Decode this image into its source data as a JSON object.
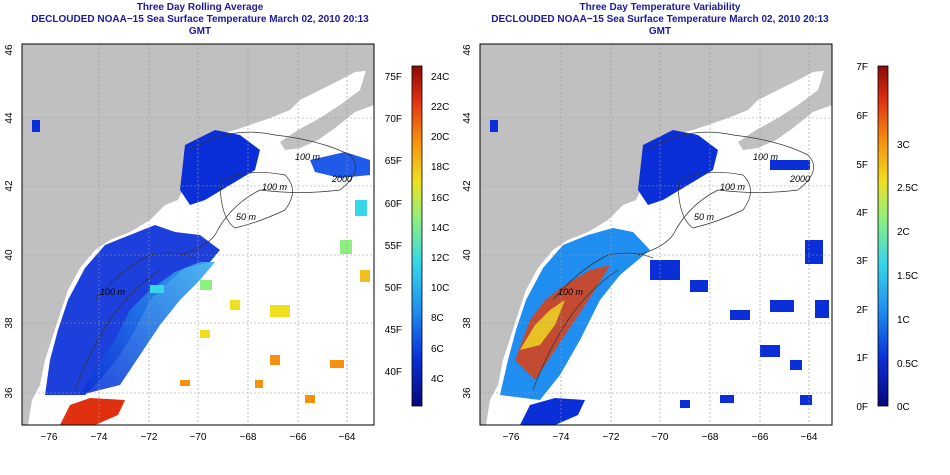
{
  "left_panel": {
    "title_line1": "Three Day Rolling Average",
    "title_line2": "DECLOUDED NOAA−15 Sea Surface Temperature March 02, 2010 20:13 GMT",
    "x_ticks": [
      "−76",
      "−74",
      "−72",
      "−70",
      "−68",
      "−66",
      "−64"
    ],
    "y_ticks": [
      "36",
      "38",
      "40",
      "42",
      "44",
      "46"
    ],
    "contour_labels": [
      "100 m",
      "2000",
      "100 m",
      "50 m",
      "100 m"
    ],
    "colorbar_f": [
      "75F",
      "70F",
      "65F",
      "60F",
      "55F",
      "50F",
      "45F",
      "40F"
    ],
    "colorbar_c": [
      "24C",
      "22C",
      "20C",
      "18C",
      "16C",
      "14C",
      "12C",
      "10C",
      "8C",
      "6C",
      "4C"
    ]
  },
  "right_panel": {
    "title_line1": "Three Day Temperature Variability",
    "title_line2": "DECLOUDED NOAA−15 Sea Surface Temperature March 02, 2010 20:13 GMT",
    "x_ticks": [
      "−76",
      "−74",
      "−72",
      "−70",
      "−68",
      "−66",
      "−64"
    ],
    "y_ticks": [
      "36",
      "38",
      "40",
      "42",
      "44",
      "46"
    ],
    "contour_labels": [
      "100 m",
      "2000",
      "100 m",
      "50 m",
      "100 m"
    ],
    "colorbar_f": [
      "7F",
      "6F",
      "5F",
      "4F",
      "3F",
      "2F",
      "1F",
      "0F"
    ],
    "colorbar_c": [
      "3C",
      "2.5C",
      "2C",
      "1.5C",
      "1C",
      "0.5C",
      "0C"
    ]
  },
  "colors": {
    "land": "#c0c0c0",
    "title": "#1a1aa0",
    "sst_scale": [
      "#08087a",
      "#0a2fd8",
      "#1f8ef0",
      "#35d6e8",
      "#8cf080",
      "#f0e020",
      "#f59010",
      "#e03010",
      "#8a0a0a"
    ],
    "var_scale": [
      "#08087a",
      "#0a2fd8",
      "#1f8ef0",
      "#35d6e8",
      "#8cf080",
      "#f0e020",
      "#f59010",
      "#e03010",
      "#8a0a0a"
    ]
  }
}
